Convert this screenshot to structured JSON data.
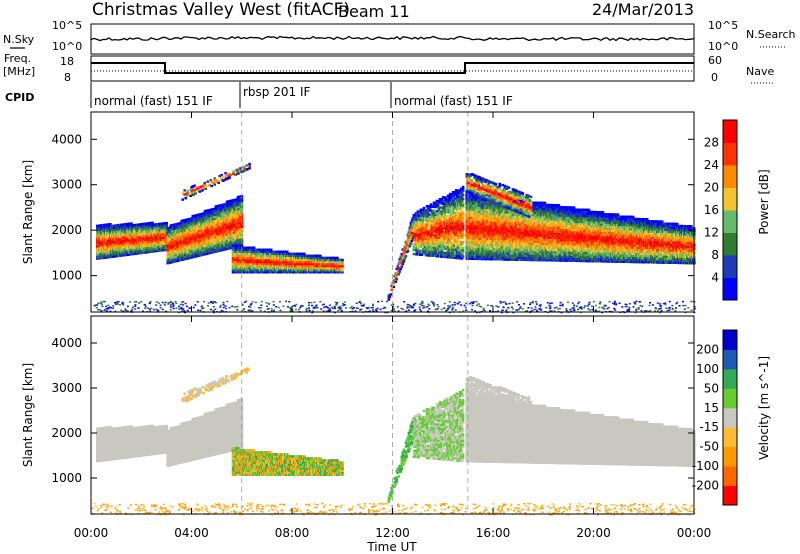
{
  "header": {
    "title": "Christmas Valley West (fitACF)",
    "beam": "Beam 11",
    "date": "24/Mar/2013"
  },
  "noise_panel": {
    "left_label": "N.Sky",
    "left_ticks": [
      "10^5",
      "10^0"
    ],
    "right_label": "N.Search",
    "right_ticks": [
      "10^5",
      "10^0"
    ]
  },
  "freq_panel": {
    "left_label_1": "Freq.",
    "left_label_2": "[MHz]",
    "left_ticks": [
      "18",
      "8"
    ],
    "right_label": "Nave",
    "right_ticks": [
      "60",
      "0"
    ]
  },
  "cpid": {
    "label": "CPID",
    "segments": [
      "normal (fast) 151 IF",
      "rbsp 201 IF",
      "normal (fast) 151 IF"
    ]
  },
  "colors": {
    "power": [
      "#0000ff",
      "#1e3cb4",
      "#2e7d32",
      "#66bb6a",
      "#f4c430",
      "#ff8c00",
      "#ff3300",
      "#ff0000"
    ],
    "velocity": [
      "#ff0000",
      "#ff6600",
      "#ff9900",
      "#ffbb33",
      "#c8c8c0",
      "#66cc33",
      "#33aa55",
      "#1e5ab4",
      "#0000cc"
    ]
  },
  "chart_data": [
    {
      "type": "heatmap",
      "ylabel": "Slant Range [km]",
      "y_ticks": [
        "1000",
        "2000",
        "3000",
        "4000"
      ],
      "ylim": [
        200,
        4600
      ],
      "x_ticks": [
        "00:00",
        "04:00",
        "08:00",
        "12:00",
        "16:00",
        "20:00",
        "00:00"
      ],
      "colorbar": {
        "label": "Power [dB]",
        "ticks": [
          "4",
          "8",
          "12",
          "16",
          "20",
          "24",
          "28"
        ]
      }
    },
    {
      "type": "heatmap",
      "ylabel": "Slant Range [km]",
      "y_ticks": [
        "1000",
        "2000",
        "3000",
        "4000"
      ],
      "ylim": [
        200,
        4600
      ],
      "x_ticks": [
        "00:00",
        "04:00",
        "08:00",
        "12:00",
        "16:00",
        "20:00",
        "00:00"
      ],
      "xlabel": "Time UT",
      "colorbar": {
        "label": "Velocity [m s^-1]",
        "ticks": [
          "200",
          "100",
          "50",
          "15",
          "-15",
          "-50",
          "-100",
          "-200"
        ]
      }
    }
  ]
}
